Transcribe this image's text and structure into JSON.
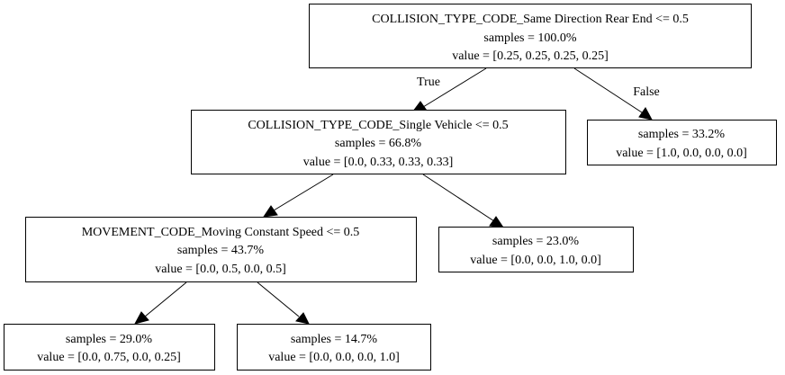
{
  "tree": {
    "nodes": [
      {
        "id": "n0",
        "lines": [
          "COLLISION_TYPE_CODE_Same Direction Rear End <= 0.5",
          "samples = 100.0%",
          "value = [0.25, 0.25, 0.25, 0.25]"
        ]
      },
      {
        "id": "n1",
        "lines": [
          "COLLISION_TYPE_CODE_Single Vehicle  <= 0.5",
          "samples = 66.8%",
          "value = [0.0, 0.33, 0.33, 0.33]"
        ]
      },
      {
        "id": "n2",
        "lines": [
          "samples = 33.2%",
          "value = [1.0, 0.0, 0.0, 0.0]"
        ]
      },
      {
        "id": "n3",
        "lines": [
          "MOVEMENT_CODE_Moving Constant Speed <= 0.5",
          "samples = 43.7%",
          "value = [0.0, 0.5, 0.0, 0.5]"
        ]
      },
      {
        "id": "n4",
        "lines": [
          "samples = 23.0%",
          "value = [0.0, 0.0, 1.0, 0.0]"
        ]
      },
      {
        "id": "n5",
        "lines": [
          "samples = 29.0%",
          "value = [0.0, 0.75, 0.0, 0.25]"
        ]
      },
      {
        "id": "n6",
        "lines": [
          "samples = 14.7%",
          "value = [0.0, 0.0, 0.0, 1.0]"
        ]
      }
    ],
    "edges": [
      {
        "from": "n0",
        "to": "n1",
        "label": "True"
      },
      {
        "from": "n0",
        "to": "n2",
        "label": "False"
      },
      {
        "from": "n1",
        "to": "n3",
        "label": ""
      },
      {
        "from": "n1",
        "to": "n4",
        "label": ""
      },
      {
        "from": "n3",
        "to": "n5",
        "label": ""
      },
      {
        "from": "n3",
        "to": "n6",
        "label": ""
      }
    ]
  }
}
